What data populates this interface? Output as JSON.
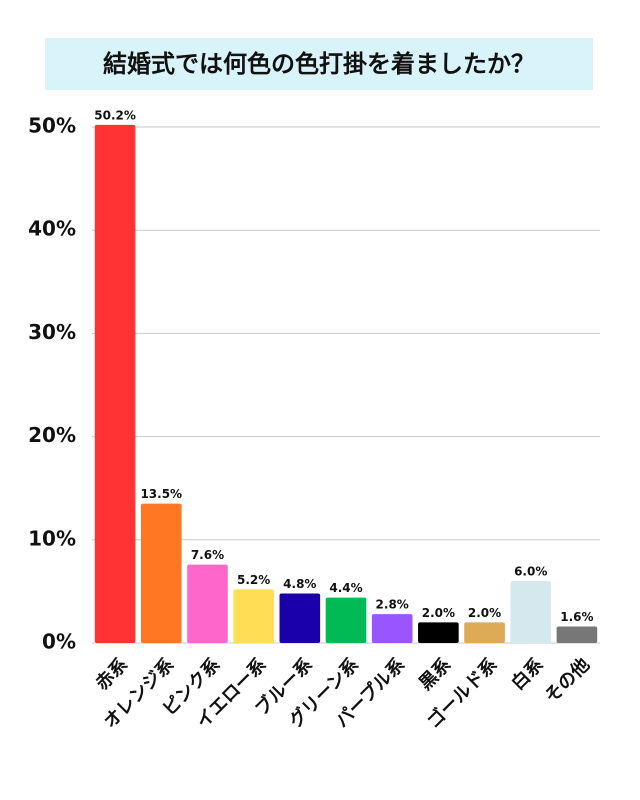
{
  "chart_data": {
    "type": "bar",
    "title": "結婚式では何色の色打掛を着ましたか？",
    "categories": [
      "赤系",
      "オレンジ系",
      "ピンク系",
      "イエロー系",
      "ブルー系",
      "グリーン系",
      "パープル系",
      "黒系",
      "ゴールド系",
      "白系",
      "その他"
    ],
    "values": [
      50.2,
      13.5,
      7.6,
      5.2,
      4.8,
      4.4,
      2.8,
      2.0,
      2.0,
      6.0,
      1.6
    ],
    "value_labels": [
      "50.2%",
      "13.5%",
      "7.6%",
      "5.2%",
      "4.8%",
      "4.4%",
      "2.8%",
      "2.0%",
      "2.0%",
      "6.0%",
      "1.6%"
    ],
    "colors": [
      "#ff3333",
      "#ff7722",
      "#ff66cc",
      "#ffdd55",
      "#1a00aa",
      "#00bb55",
      "#9955ff",
      "#000000",
      "#ddaa55",
      "#d5e8ee",
      "#777777"
    ],
    "ylim": [
      0,
      50
    ],
    "yticks": [
      {
        "value": 0,
        "label": "0%"
      },
      {
        "value": 10,
        "label": "10%"
      },
      {
        "value": 20,
        "label": "20%"
      },
      {
        "value": 30,
        "label": "30%"
      },
      {
        "value": 40,
        "label": "40%"
      },
      {
        "value": 50,
        "label": "50%"
      }
    ],
    "grid": true
  }
}
